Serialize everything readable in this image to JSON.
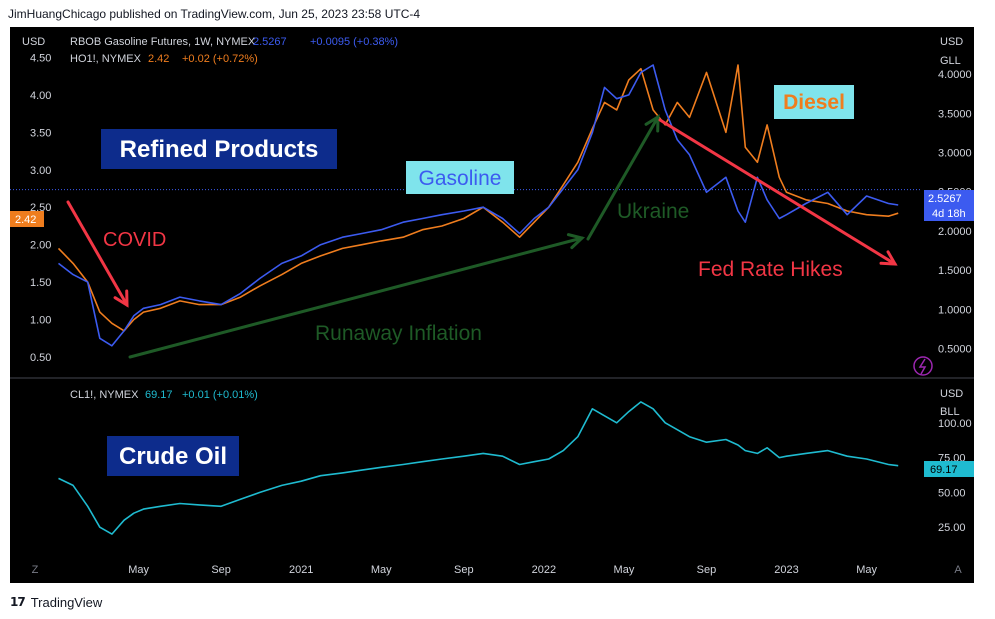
{
  "header": {
    "publisher": "JimHuangChicago published on TradingView.com, Jun 25, 2023 23:58 UTC-4"
  },
  "footer": {
    "brand": "TradingView",
    "logo_glyph": "17"
  },
  "colors": {
    "background": "#000000",
    "gasoline": "#3c5bf0",
    "diesel": "#ef7d1e",
    "crude": "#1fbbd0",
    "green_arrow": "#1e5a26",
    "red_arrow": "#f23645",
    "title_box": "#0d2c8c",
    "label_box": "#7fe4ec",
    "axis_text": "#d1d4dc"
  },
  "chart_data": [
    {
      "type": "line",
      "title": "Refined Products",
      "left_axis": {
        "unit": "USD",
        "ylim": [
          0.3,
          4.8
        ],
        "ticks": [
          "4.50",
          "4.00",
          "3.50",
          "3.00",
          "2.50",
          "2.00",
          "1.50",
          "1.00",
          "0.50"
        ]
      },
      "right_axis": {
        "unit": "USD",
        "sub_unit": "GLL",
        "ylim": [
          0.2,
          4.5
        ],
        "ticks": [
          "4.0000",
          "3.5000",
          "3.0000",
          "2.5000",
          "2.0000",
          "1.5000",
          "1.0000",
          "0.5000"
        ]
      },
      "x": [
        2020.0,
        2020.06,
        2020.12,
        2020.17,
        2020.22,
        2020.27,
        2020.31,
        2020.35,
        2020.42,
        2020.5,
        2020.58,
        2020.67,
        2020.75,
        2020.83,
        2020.92,
        2021.0,
        2021.08,
        2021.17,
        2021.25,
        2021.33,
        2021.42,
        2021.5,
        2021.58,
        2021.67,
        2021.75,
        2021.83,
        2021.9,
        2021.96,
        2022.02,
        2022.08,
        2022.14,
        2022.2,
        2022.25,
        2022.3,
        2022.35,
        2022.4,
        2022.45,
        2022.5,
        2022.55,
        2022.6,
        2022.67,
        2022.75,
        2022.8,
        2022.83,
        2022.88,
        2022.92,
        2022.97,
        2023.0,
        2023.08,
        2023.17,
        2023.25,
        2023.33,
        2023.42,
        2023.46
      ],
      "series": [
        {
          "name": "RBOB Gasoline Futures, 1W, NYMEX",
          "symbol_label": "RBOB Gasoline Futures, 1W, NYMEX",
          "last": "2.5267",
          "change": "+0.0095 (+0.38%)",
          "values": [
            1.75,
            1.6,
            1.5,
            0.75,
            0.65,
            0.85,
            1.05,
            1.15,
            1.2,
            1.3,
            1.25,
            1.2,
            1.35,
            1.55,
            1.75,
            1.85,
            2.0,
            2.1,
            2.15,
            2.2,
            2.3,
            2.35,
            2.4,
            2.45,
            2.5,
            2.35,
            2.15,
            2.35,
            2.5,
            2.75,
            3.0,
            3.5,
            4.1,
            3.95,
            4.0,
            4.3,
            4.4,
            3.8,
            3.4,
            3.2,
            2.7,
            2.9,
            2.45,
            2.3,
            2.9,
            2.6,
            2.35,
            2.4,
            2.55,
            2.7,
            2.4,
            2.65,
            2.55,
            2.53
          ]
        },
        {
          "name": "HO1!, NYMEX",
          "symbol_label": "HO1!, NYMEX",
          "last": "2.42",
          "change": "+0.02 (+0.72%)",
          "values": [
            1.95,
            1.75,
            1.5,
            1.1,
            0.95,
            0.85,
            1.0,
            1.1,
            1.15,
            1.25,
            1.2,
            1.2,
            1.3,
            1.45,
            1.6,
            1.75,
            1.85,
            1.95,
            2.0,
            2.05,
            2.1,
            2.2,
            2.25,
            2.35,
            2.5,
            2.3,
            2.1,
            2.3,
            2.5,
            2.8,
            3.1,
            3.55,
            3.9,
            3.8,
            4.2,
            4.35,
            3.8,
            3.6,
            3.9,
            3.7,
            4.3,
            3.5,
            4.4,
            3.3,
            3.1,
            3.6,
            2.9,
            2.7,
            2.6,
            2.55,
            2.45,
            2.4,
            2.38,
            2.42
          ]
        },
        {
          "name": "CL1!, NYMEX",
          "symbol_label": "CL1!, NYMEX",
          "last": "69.17",
          "change": "+0.01 (+0.01%)",
          "values": [
            60,
            55,
            40,
            25,
            20,
            30,
            35,
            38,
            40,
            42,
            41,
            40,
            45,
            50,
            55,
            58,
            62,
            64,
            66,
            68,
            70,
            72,
            74,
            76,
            78,
            76,
            70,
            72,
            74,
            80,
            90,
            110,
            105,
            100,
            108,
            115,
            110,
            100,
            95,
            90,
            86,
            88,
            84,
            80,
            78,
            82,
            75,
            76,
            78,
            80,
            76,
            74,
            70,
            69.17
          ]
        }
      ],
      "badges": {
        "gasoline_price": "2.5267",
        "countdown": "4d 18h",
        "diesel_price": "2.42"
      },
      "annotations": {
        "title": "Refined Products",
        "covid": "COVID",
        "gasoline": "Gasoline",
        "diesel": "Diesel",
        "ukraine": "Ukraine",
        "inflation": "Runaway Inflation",
        "fed": "Fed Rate Hikes"
      }
    },
    {
      "type": "line",
      "title": "Crude Oil",
      "right_axis": {
        "unit": "USD",
        "sub_unit": "BLL",
        "ylim": [
          5,
          130
        ],
        "ticks": [
          "100.00",
          "75.00",
          "50.00",
          "25.00"
        ]
      },
      "last_badge": "69.17"
    }
  ],
  "x_axis": {
    "ticks": [
      {
        "label": "May",
        "x": 2020.33
      },
      {
        "label": "Sep",
        "x": 2020.67
      },
      {
        "label": "2021",
        "x": 2021.0
      },
      {
        "label": "May",
        "x": 2021.33
      },
      {
        "label": "Sep",
        "x": 2021.67
      },
      {
        "label": "2022",
        "x": 2022.0
      },
      {
        "label": "May",
        "x": 2022.33
      },
      {
        "label": "Sep",
        "x": 2022.67
      },
      {
        "label": "2023",
        "x": 2023.0
      },
      {
        "label": "May",
        "x": 2023.33
      }
    ],
    "range": [
      2019.8,
      2023.55
    ]
  },
  "corner_labels": {
    "left": "Z",
    "right": "A"
  }
}
